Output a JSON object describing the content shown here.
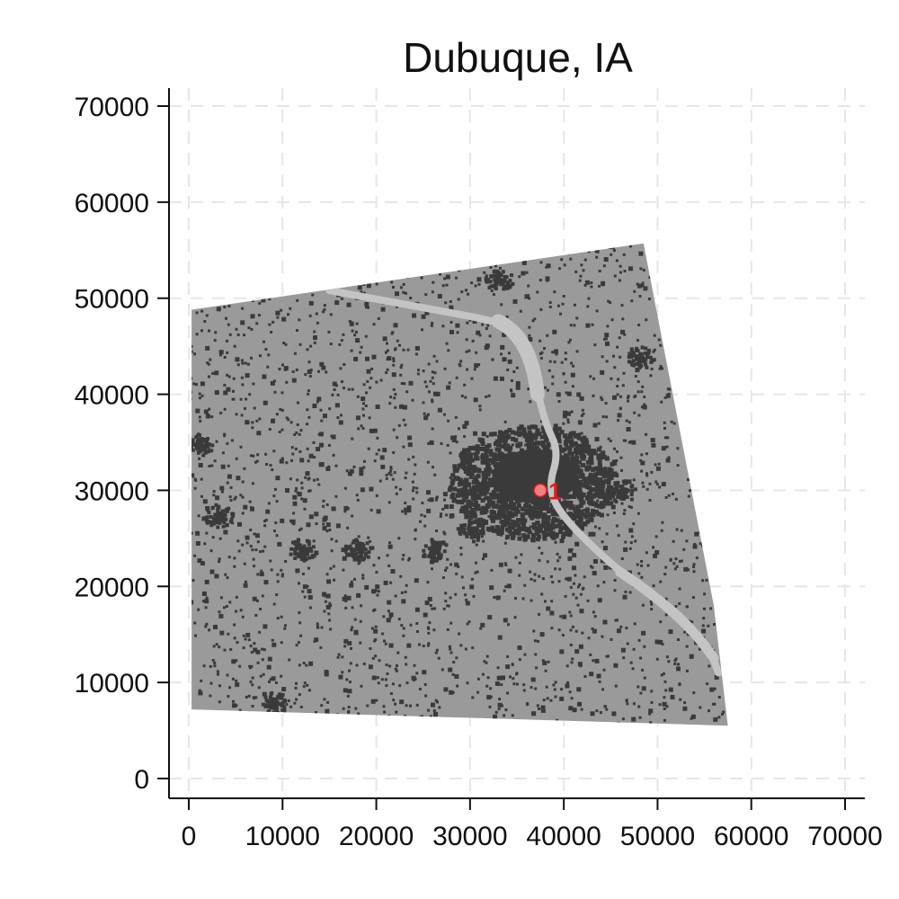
{
  "chart_data": {
    "type": "scatter",
    "title": "Dubuque, IA",
    "xlabel": "",
    "ylabel": "",
    "xlim": [
      -2000,
      72000
    ],
    "ylim": [
      -2000,
      72000
    ],
    "x_ticks": [
      0,
      10000,
      20000,
      30000,
      40000,
      50000,
      60000,
      70000
    ],
    "y_ticks": [
      0,
      10000,
      20000,
      30000,
      40000,
      50000,
      60000,
      70000
    ],
    "grid": true,
    "region_outline": [
      [
        300,
        48800
      ],
      [
        48500,
        55700
      ],
      [
        56000,
        18000
      ],
      [
        57500,
        5500
      ],
      [
        300,
        7200
      ]
    ],
    "river_path": [
      [
        15000,
        50800
      ],
      [
        25000,
        49000
      ],
      [
        33500,
        47500
      ],
      [
        35800,
        46000
      ],
      [
        36800,
        42000
      ],
      [
        38000,
        37000
      ],
      [
        39500,
        34000
      ],
      [
        38300,
        30200
      ],
      [
        40000,
        27000
      ],
      [
        46500,
        21000
      ],
      [
        52000,
        17500
      ],
      [
        55500,
        13500
      ],
      [
        56500,
        11000
      ]
    ],
    "urban_center": {
      "x": 36500,
      "y": 31000
    },
    "series": [
      {
        "points": [
          {
            "x": 37500,
            "y": 30000,
            "label": "1"
          }
        ]
      }
    ],
    "colors": {
      "land": "#9a9a9a",
      "developed": "#3a3a3a",
      "water": "#c4c4c4",
      "marker": "#e31a1c",
      "marker_fill": "#f08080",
      "grid": "#e6e6e6"
    }
  }
}
